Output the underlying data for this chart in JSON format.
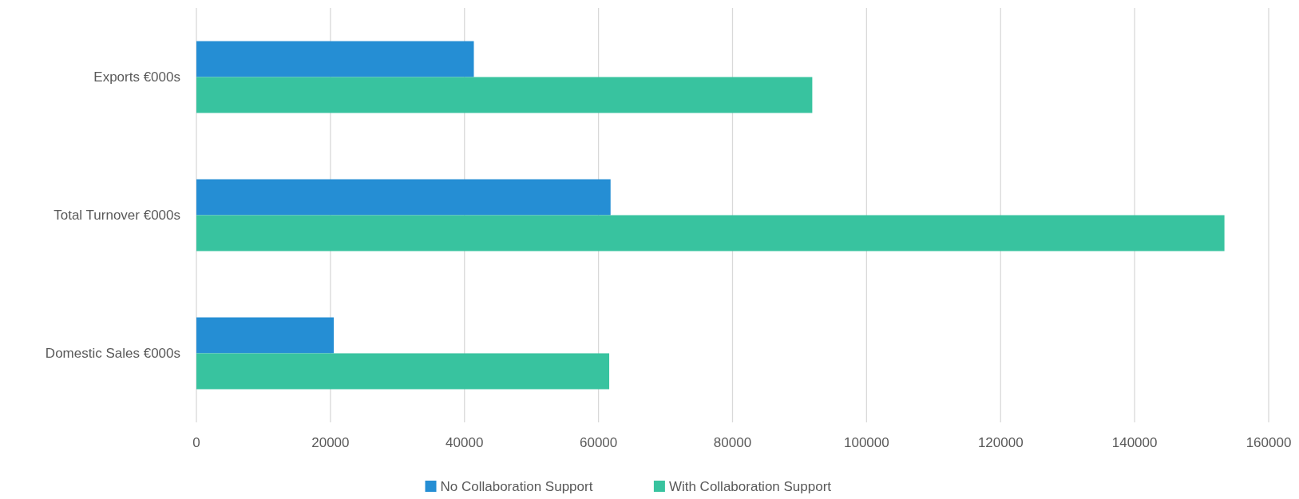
{
  "chart_data": {
    "type": "bar",
    "orientation": "horizontal",
    "categories": [
      "Exports €000s",
      "Total Turnover €000s",
      "Domestic Sales €000s"
    ],
    "series": [
      {
        "name": "No Collaboration Support",
        "color": "#258ed4",
        "values": [
          41400,
          61800,
          20500
        ]
      },
      {
        "name": "With Collaboration Support",
        "color": "#38c39f",
        "values": [
          91900,
          153400,
          61600
        ]
      }
    ],
    "xlim": [
      0,
      160000
    ],
    "xticks": [
      0,
      20000,
      40000,
      60000,
      80000,
      100000,
      120000,
      140000,
      160000
    ],
    "grid": "x",
    "legend": "bottom"
  }
}
